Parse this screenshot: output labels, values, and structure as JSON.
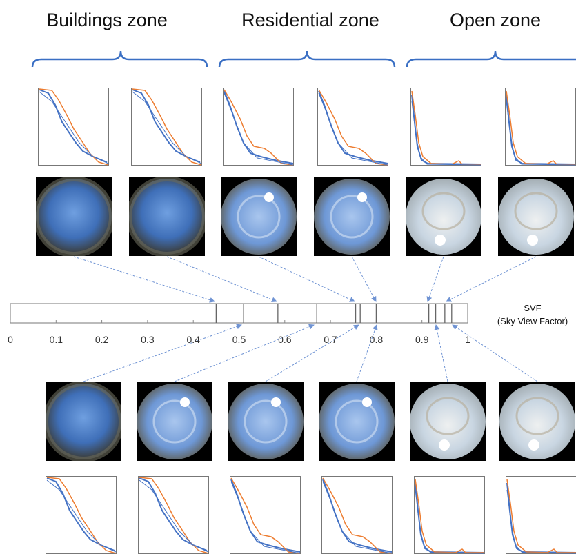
{
  "zones": [
    "Buildings zone",
    "Residential zone",
    "Open zone"
  ],
  "scale": {
    "label": "SVF",
    "sublabel": "(Sky View Factor)",
    "xlim": [
      0,
      1
    ],
    "xticks": [
      0,
      0.1,
      0.2,
      0.3,
      0.4,
      0.5,
      0.6,
      0.7,
      0.8,
      0.9,
      1
    ],
    "markers": [
      0.45,
      0.51,
      0.585,
      0.67,
      0.755,
      0.765,
      0.8,
      0.915,
      0.93,
      0.95,
      0.965
    ]
  }
}
